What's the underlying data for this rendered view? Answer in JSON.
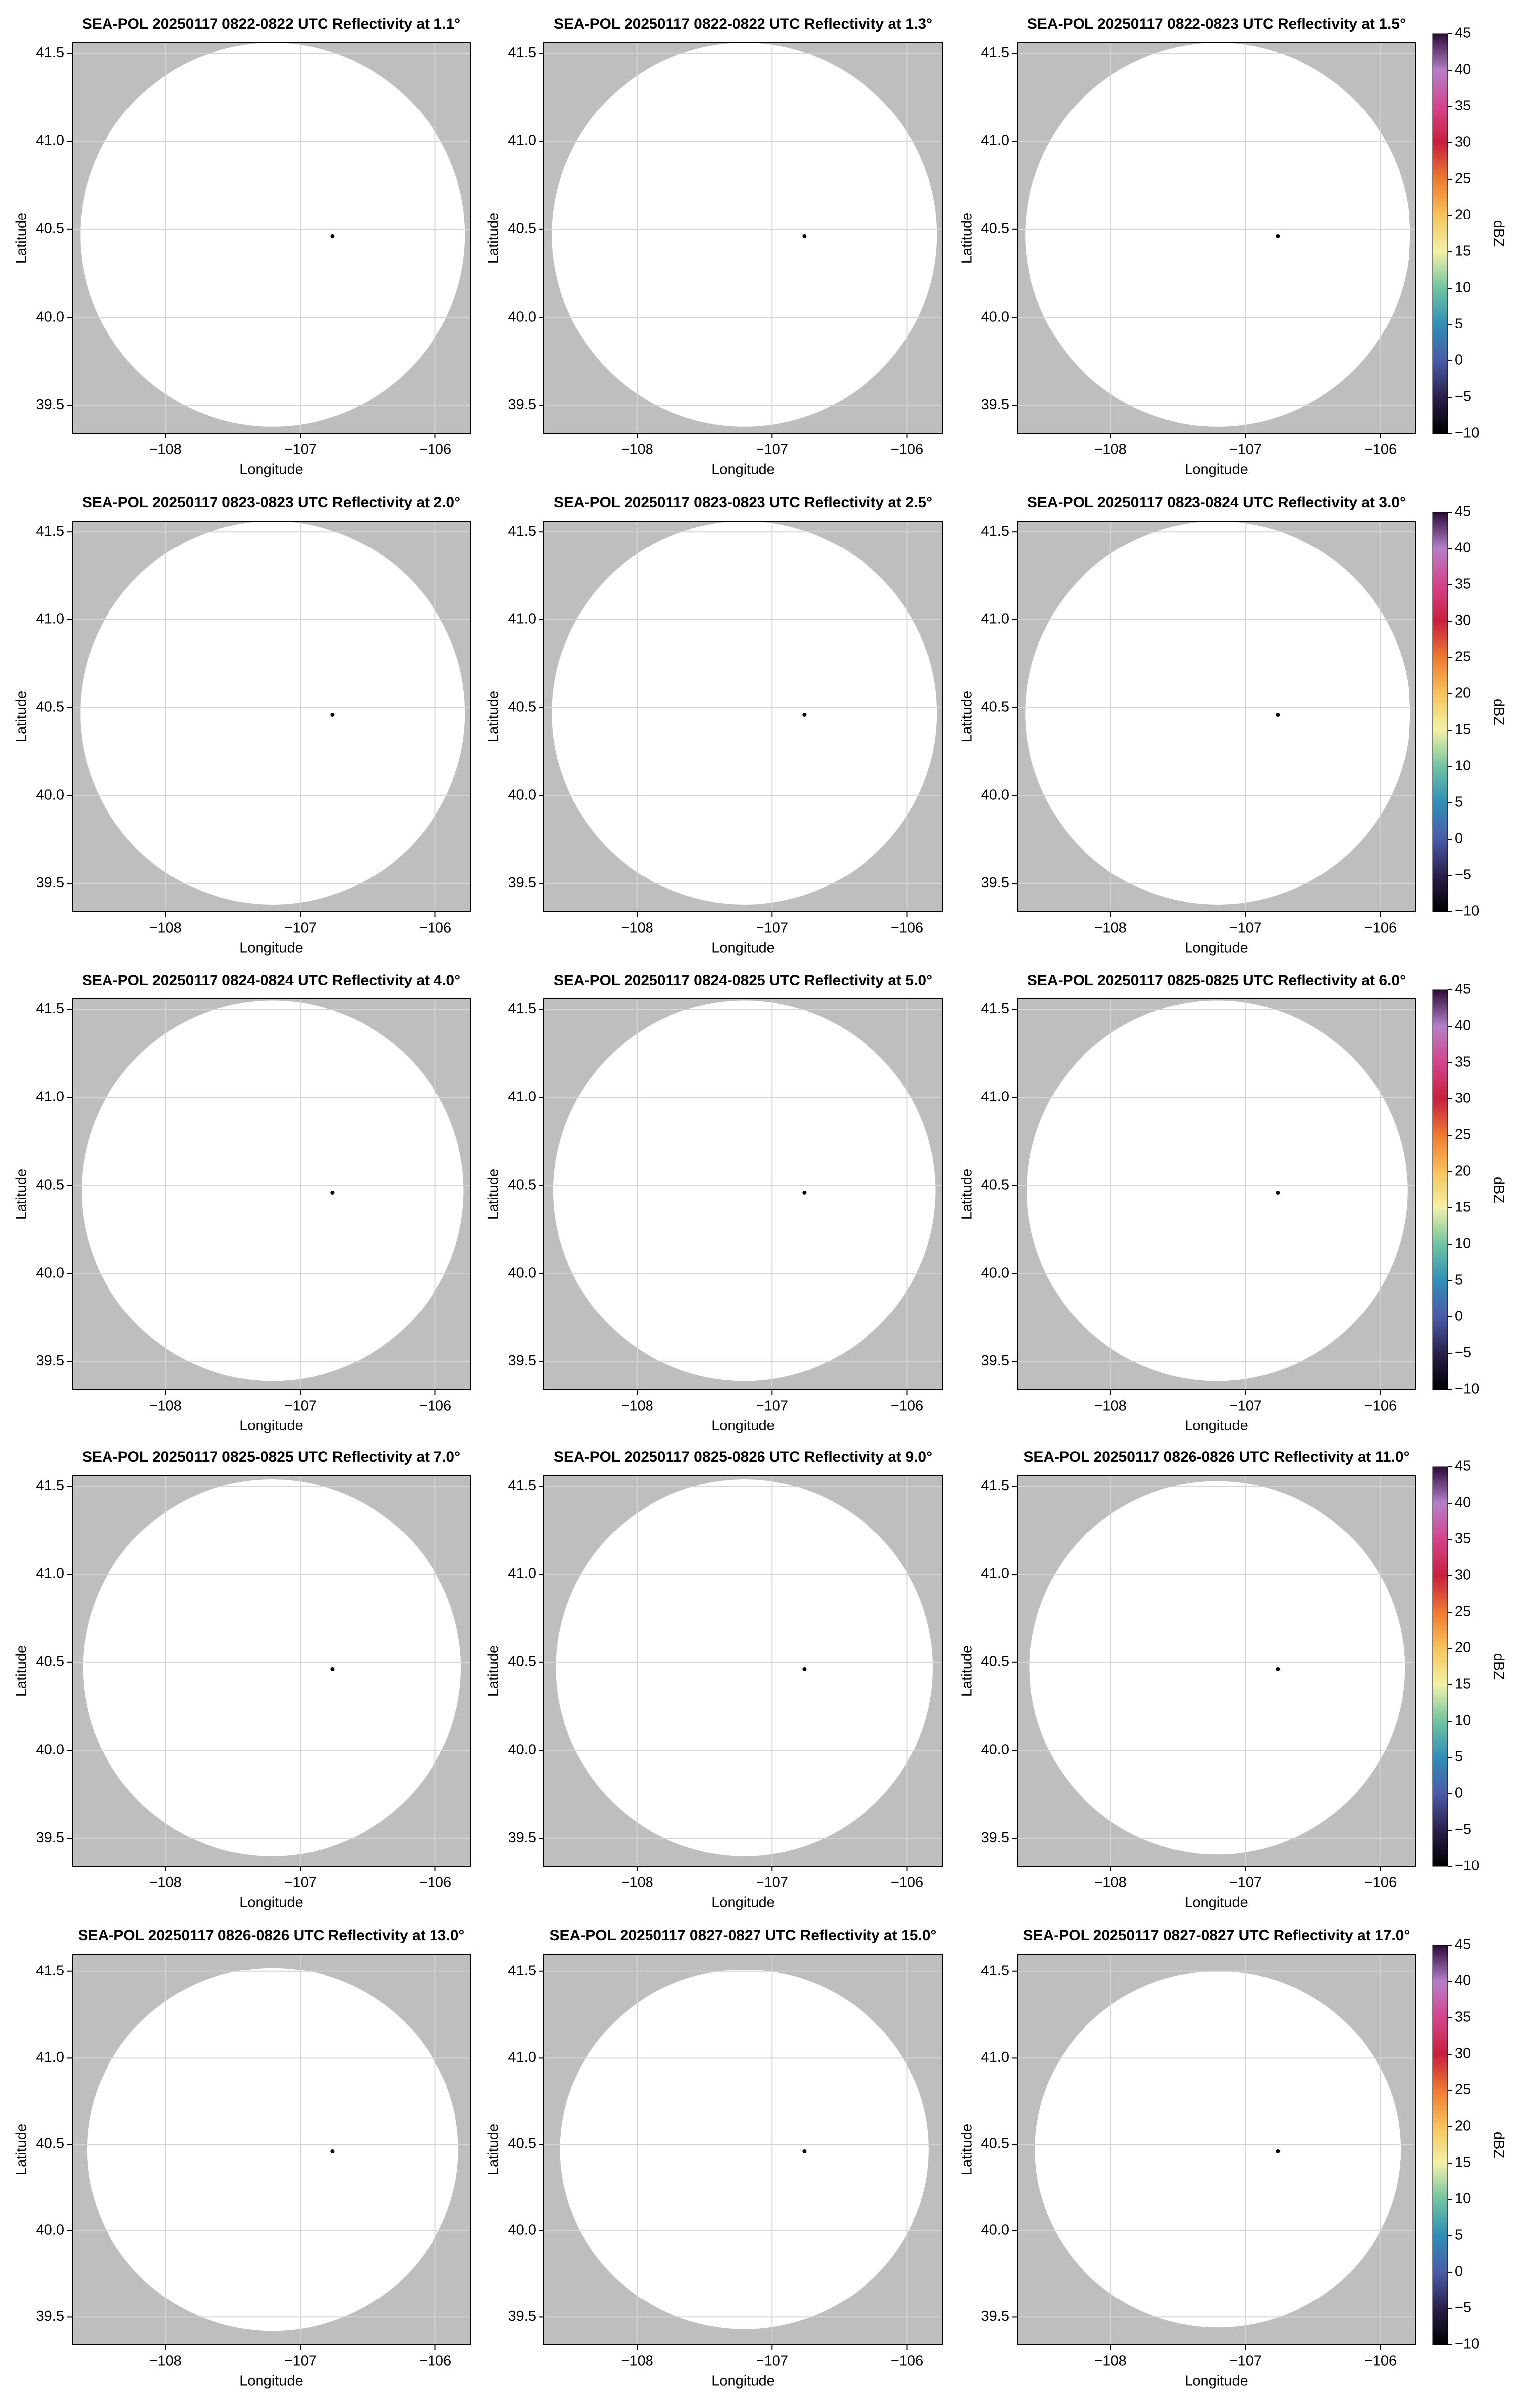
{
  "chart_data": [
    {
      "type": "map",
      "title": "SEA-POL 20250117 0822-0822 UTC Reflectivity at 1.1°",
      "xlabel": "Longitude",
      "ylabel": "Latitude",
      "xlim": [
        -108.69,
        -105.74
      ],
      "ylim": [
        39.34,
        41.56
      ],
      "xticks": [
        {
          "value": -108,
          "label": "−108"
        },
        {
          "value": -107,
          "label": "−107"
        },
        {
          "value": -106,
          "label": "−106"
        }
      ],
      "yticks": [
        39.5,
        {
          "value": 40,
          "label": "40.0"
        },
        40.5,
        {
          "value": 41,
          "label": "41.0"
        },
        41.5
      ],
      "grid": true,
      "background": "#bebebe",
      "coverage": {
        "lon": [
          -108.63,
          -105.78
        ],
        "lat": [
          39.38,
          41.56
        ],
        "color": "#ffffff"
      },
      "radar": {
        "lon": -106.76,
        "lat": 40.46,
        "color": "#000000"
      }
    },
    {
      "type": "map",
      "title": "SEA-POL 20250117 0822-0822 UTC Reflectivity at 1.3°",
      "xlabel": "Longitude",
      "ylabel": "Latitude",
      "xlim": [
        -108.69,
        -105.74
      ],
      "ylim": [
        39.34,
        41.56
      ],
      "xticks": [
        {
          "value": -108,
          "label": "−108"
        },
        {
          "value": -107,
          "label": "−107"
        },
        {
          "value": -106,
          "label": "−106"
        }
      ],
      "yticks": [
        39.5,
        {
          "value": 40,
          "label": "40.0"
        },
        40.5,
        {
          "value": 41,
          "label": "41.0"
        },
        41.5
      ],
      "grid": true,
      "background": "#bebebe",
      "coverage": {
        "lon": [
          -108.63,
          -105.78
        ],
        "lat": [
          39.38,
          41.56
        ],
        "color": "#ffffff"
      },
      "radar": {
        "lon": -106.76,
        "lat": 40.46,
        "color": "#000000"
      }
    },
    {
      "type": "map",
      "title": "SEA-POL 20250117 0822-0823 UTC Reflectivity at 1.5°",
      "xlabel": "Longitude",
      "ylabel": "Latitude",
      "xlim": [
        -108.69,
        -105.74
      ],
      "ylim": [
        39.34,
        41.56
      ],
      "xticks": [
        {
          "value": -108,
          "label": "−108"
        },
        {
          "value": -107,
          "label": "−107"
        },
        {
          "value": -106,
          "label": "−106"
        }
      ],
      "yticks": [
        39.5,
        {
          "value": 40,
          "label": "40.0"
        },
        40.5,
        {
          "value": 41,
          "label": "41.0"
        },
        41.5
      ],
      "grid": true,
      "background": "#bebebe",
      "coverage": {
        "lon": [
          -108.63,
          -105.78
        ],
        "lat": [
          39.38,
          41.56
        ],
        "color": "#ffffff"
      },
      "radar": {
        "lon": -106.76,
        "lat": 40.46,
        "color": "#000000"
      },
      "colorbar": {
        "label": "dBZ",
        "lim": [
          -10,
          45
        ],
        "ticks": [
          {
            "value": -10,
            "label": "−10"
          },
          {
            "value": -5,
            "label": "−5"
          },
          0,
          5,
          10,
          15,
          20,
          25,
          30,
          35,
          40,
          45
        ],
        "colors": [
          "#000000",
          "#2a1f4a",
          "#4a5ba8",
          "#2f8fb8",
          "#6ec4a0",
          "#f2f2a8",
          "#f6c45a",
          "#ee7a32",
          "#c8203a",
          "#d4448c",
          "#b57fc8",
          "#2d0a3a"
        ]
      }
    },
    {
      "type": "map",
      "title": "SEA-POL 20250117 0823-0823 UTC Reflectivity at 2.0°",
      "xlabel": "Longitude",
      "ylabel": "Latitude",
      "xlim": [
        -108.69,
        -105.74
      ],
      "ylim": [
        39.34,
        41.56
      ],
      "xticks": [
        {
          "value": -108,
          "label": "−108"
        },
        {
          "value": -107,
          "label": "−107"
        },
        {
          "value": -106,
          "label": "−106"
        }
      ],
      "yticks": [
        39.5,
        {
          "value": 40,
          "label": "40.0"
        },
        40.5,
        {
          "value": 41,
          "label": "41.0"
        },
        41.5
      ],
      "grid": true,
      "background": "#bebebe",
      "coverage": {
        "lon": [
          -108.63,
          -105.78
        ],
        "lat": [
          39.38,
          41.56
        ],
        "color": "#ffffff"
      },
      "radar": {
        "lon": -106.76,
        "lat": 40.46,
        "color": "#000000"
      }
    },
    {
      "type": "map",
      "title": "SEA-POL 20250117 0823-0823 UTC Reflectivity at 2.5°",
      "xlabel": "Longitude",
      "ylabel": "Latitude",
      "xlim": [
        -108.69,
        -105.74
      ],
      "ylim": [
        39.34,
        41.56
      ],
      "xticks": [
        {
          "value": -108,
          "label": "−108"
        },
        {
          "value": -107,
          "label": "−107"
        },
        {
          "value": -106,
          "label": "−106"
        }
      ],
      "yticks": [
        39.5,
        {
          "value": 40,
          "label": "40.0"
        },
        40.5,
        {
          "value": 41,
          "label": "41.0"
        },
        41.5
      ],
      "grid": true,
      "background": "#bebebe",
      "coverage": {
        "lon": [
          -108.63,
          -105.78
        ],
        "lat": [
          39.38,
          41.56
        ],
        "color": "#ffffff"
      },
      "radar": {
        "lon": -106.76,
        "lat": 40.46,
        "color": "#000000"
      }
    },
    {
      "type": "map",
      "title": "SEA-POL 20250117 0823-0824 UTC Reflectivity at 3.0°",
      "xlabel": "Longitude",
      "ylabel": "Latitude",
      "xlim": [
        -108.69,
        -105.74
      ],
      "ylim": [
        39.34,
        41.56
      ],
      "xticks": [
        {
          "value": -108,
          "label": "−108"
        },
        {
          "value": -107,
          "label": "−107"
        },
        {
          "value": -106,
          "label": "−106"
        }
      ],
      "yticks": [
        39.5,
        {
          "value": 40,
          "label": "40.0"
        },
        40.5,
        {
          "value": 41,
          "label": "41.0"
        },
        41.5
      ],
      "grid": true,
      "background": "#bebebe",
      "coverage": {
        "lon": [
          -108.63,
          -105.78
        ],
        "lat": [
          39.38,
          41.56
        ],
        "color": "#ffffff"
      },
      "radar": {
        "lon": -106.76,
        "lat": 40.46,
        "color": "#000000"
      },
      "colorbar": {
        "label": "dBZ",
        "lim": [
          -10,
          45
        ],
        "ticks": [
          {
            "value": -10,
            "label": "−10"
          },
          {
            "value": -5,
            "label": "−5"
          },
          0,
          5,
          10,
          15,
          20,
          25,
          30,
          35,
          40,
          45
        ],
        "colors": [
          "#000000",
          "#2a1f4a",
          "#4a5ba8",
          "#2f8fb8",
          "#6ec4a0",
          "#f2f2a8",
          "#f6c45a",
          "#ee7a32",
          "#c8203a",
          "#d4448c",
          "#b57fc8",
          "#2d0a3a"
        ]
      }
    },
    {
      "type": "map",
      "title": "SEA-POL 20250117 0824-0824 UTC Reflectivity at 4.0°",
      "xlabel": "Longitude",
      "ylabel": "Latitude",
      "xlim": [
        -108.69,
        -105.74
      ],
      "ylim": [
        39.34,
        41.56
      ],
      "xticks": [
        {
          "value": -108,
          "label": "−108"
        },
        {
          "value": -107,
          "label": "−107"
        },
        {
          "value": -106,
          "label": "−106"
        }
      ],
      "yticks": [
        39.5,
        {
          "value": 40,
          "label": "40.0"
        },
        40.5,
        {
          "value": 41,
          "label": "41.0"
        },
        41.5
      ],
      "grid": true,
      "background": "#bebebe",
      "coverage": {
        "lon": [
          -108.62,
          -105.79
        ],
        "lat": [
          39.39,
          41.55
        ],
        "color": "#ffffff"
      },
      "radar": {
        "lon": -106.76,
        "lat": 40.46,
        "color": "#000000"
      }
    },
    {
      "type": "map",
      "title": "SEA-POL 20250117 0824-0825 UTC Reflectivity at 5.0°",
      "xlabel": "Longitude",
      "ylabel": "Latitude",
      "xlim": [
        -108.69,
        -105.74
      ],
      "ylim": [
        39.34,
        41.56
      ],
      "xticks": [
        {
          "value": -108,
          "label": "−108"
        },
        {
          "value": -107,
          "label": "−107"
        },
        {
          "value": -106,
          "label": "−106"
        }
      ],
      "yticks": [
        39.5,
        {
          "value": 40,
          "label": "40.0"
        },
        40.5,
        {
          "value": 41,
          "label": "41.0"
        },
        41.5
      ],
      "grid": true,
      "background": "#bebebe",
      "coverage": {
        "lon": [
          -108.62,
          -105.79
        ],
        "lat": [
          39.39,
          41.55
        ],
        "color": "#ffffff"
      },
      "radar": {
        "lon": -106.76,
        "lat": 40.46,
        "color": "#000000"
      }
    },
    {
      "type": "map",
      "title": "SEA-POL 20250117 0825-0825 UTC Reflectivity at 6.0°",
      "xlabel": "Longitude",
      "ylabel": "Latitude",
      "xlim": [
        -108.69,
        -105.74
      ],
      "ylim": [
        39.34,
        41.56
      ],
      "xticks": [
        {
          "value": -108,
          "label": "−108"
        },
        {
          "value": -107,
          "label": "−107"
        },
        {
          "value": -106,
          "label": "−106"
        }
      ],
      "yticks": [
        39.5,
        {
          "value": 40,
          "label": "40.0"
        },
        40.5,
        {
          "value": 41,
          "label": "41.0"
        },
        41.5
      ],
      "grid": true,
      "background": "#bebebe",
      "coverage": {
        "lon": [
          -108.62,
          -105.8
        ],
        "lat": [
          39.39,
          41.55
        ],
        "color": "#ffffff"
      },
      "radar": {
        "lon": -106.76,
        "lat": 40.46,
        "color": "#000000"
      },
      "colorbar": {
        "label": "dBZ",
        "lim": [
          -10,
          45
        ],
        "ticks": [
          {
            "value": -10,
            "label": "−10"
          },
          {
            "value": -5,
            "label": "−5"
          },
          0,
          5,
          10,
          15,
          20,
          25,
          30,
          35,
          40,
          45
        ],
        "colors": [
          "#000000",
          "#2a1f4a",
          "#4a5ba8",
          "#2f8fb8",
          "#6ec4a0",
          "#f2f2a8",
          "#f6c45a",
          "#ee7a32",
          "#c8203a",
          "#d4448c",
          "#b57fc8",
          "#2d0a3a"
        ]
      }
    },
    {
      "type": "map",
      "title": "SEA-POL 20250117 0825-0825 UTC Reflectivity at 7.0°",
      "xlabel": "Longitude",
      "ylabel": "Latitude",
      "xlim": [
        -108.69,
        -105.74
      ],
      "ylim": [
        39.34,
        41.56
      ],
      "xticks": [
        {
          "value": -108,
          "label": "−108"
        },
        {
          "value": -107,
          "label": "−107"
        },
        {
          "value": -106,
          "label": "−106"
        }
      ],
      "yticks": [
        39.5,
        {
          "value": 40,
          "label": "40.0"
        },
        40.5,
        {
          "value": 41,
          "label": "41.0"
        },
        41.5
      ],
      "grid": true,
      "background": "#bebebe",
      "coverage": {
        "lon": [
          -108.61,
          -105.81
        ],
        "lat": [
          39.4,
          41.54
        ],
        "color": "#ffffff"
      },
      "radar": {
        "lon": -106.76,
        "lat": 40.46,
        "color": "#000000"
      }
    },
    {
      "type": "map",
      "title": "SEA-POL 20250117 0825-0826 UTC Reflectivity at 9.0°",
      "xlabel": "Longitude",
      "ylabel": "Latitude",
      "xlim": [
        -108.69,
        -105.74
      ],
      "ylim": [
        39.34,
        41.56
      ],
      "xticks": [
        {
          "value": -108,
          "label": "−108"
        },
        {
          "value": -107,
          "label": "−107"
        },
        {
          "value": -106,
          "label": "−106"
        }
      ],
      "yticks": [
        39.5,
        {
          "value": 40,
          "label": "40.0"
        },
        40.5,
        {
          "value": 41,
          "label": "41.0"
        },
        41.5
      ],
      "grid": true,
      "background": "#bebebe",
      "coverage": {
        "lon": [
          -108.6,
          -105.81
        ],
        "lat": [
          39.4,
          41.54
        ],
        "color": "#ffffff"
      },
      "radar": {
        "lon": -106.76,
        "lat": 40.46,
        "color": "#000000"
      }
    },
    {
      "type": "map",
      "title": "SEA-POL 20250117 0826-0826 UTC Reflectivity at 11.0°",
      "xlabel": "Longitude",
      "ylabel": "Latitude",
      "xlim": [
        -108.69,
        -105.74
      ],
      "ylim": [
        39.34,
        41.56
      ],
      "xticks": [
        {
          "value": -108,
          "label": "−108"
        },
        {
          "value": -107,
          "label": "−107"
        },
        {
          "value": -106,
          "label": "−106"
        }
      ],
      "yticks": [
        39.5,
        {
          "value": 40,
          "label": "40.0"
        },
        40.5,
        {
          "value": 41,
          "label": "41.0"
        },
        41.5
      ],
      "grid": true,
      "background": "#bebebe",
      "coverage": {
        "lon": [
          -108.6,
          -105.82
        ],
        "lat": [
          39.41,
          41.53
        ],
        "color": "#ffffff"
      },
      "radar": {
        "lon": -106.76,
        "lat": 40.46,
        "color": "#000000"
      },
      "colorbar": {
        "label": "dBZ",
        "lim": [
          -10,
          45
        ],
        "ticks": [
          {
            "value": -10,
            "label": "−10"
          },
          {
            "value": -5,
            "label": "−5"
          },
          0,
          5,
          10,
          15,
          20,
          25,
          30,
          35,
          40,
          45
        ],
        "colors": [
          "#000000",
          "#2a1f4a",
          "#4a5ba8",
          "#2f8fb8",
          "#6ec4a0",
          "#f2f2a8",
          "#f6c45a",
          "#ee7a32",
          "#c8203a",
          "#d4448c",
          "#b57fc8",
          "#2d0a3a"
        ]
      }
    },
    {
      "type": "map",
      "title": "SEA-POL 20250117 0826-0826 UTC Reflectivity at 13.0°",
      "xlabel": "Longitude",
      "ylabel": "Latitude",
      "xlim": [
        -108.69,
        -105.74
      ],
      "ylim": [
        39.34,
        41.6
      ],
      "xticks": [
        {
          "value": -108,
          "label": "−108"
        },
        {
          "value": -107,
          "label": "−107"
        },
        {
          "value": -106,
          "label": "−106"
        }
      ],
      "yticks": [
        39.5,
        {
          "value": 40,
          "label": "40.0"
        },
        40.5,
        {
          "value": 41,
          "label": "41.0"
        },
        41.5
      ],
      "grid": true,
      "background": "#bebebe",
      "coverage": {
        "lon": [
          -108.58,
          -105.83
        ],
        "lat": [
          39.42,
          41.52
        ],
        "color": "#ffffff"
      },
      "radar": {
        "lon": -106.76,
        "lat": 40.46,
        "color": "#000000"
      }
    },
    {
      "type": "map",
      "title": "SEA-POL 20250117 0827-0827 UTC Reflectivity at 15.0°",
      "xlabel": "Longitude",
      "ylabel": "Latitude",
      "xlim": [
        -108.69,
        -105.74
      ],
      "ylim": [
        39.34,
        41.6
      ],
      "xticks": [
        {
          "value": -108,
          "label": "−108"
        },
        {
          "value": -107,
          "label": "−107"
        },
        {
          "value": -106,
          "label": "−106"
        }
      ],
      "yticks": [
        39.5,
        {
          "value": 40,
          "label": "40.0"
        },
        40.5,
        {
          "value": 41,
          "label": "41.0"
        },
        41.5
      ],
      "grid": true,
      "background": "#bebebe",
      "coverage": {
        "lon": [
          -108.57,
          -105.84
        ],
        "lat": [
          39.43,
          41.51
        ],
        "color": "#ffffff"
      },
      "radar": {
        "lon": -106.76,
        "lat": 40.46,
        "color": "#000000"
      }
    },
    {
      "type": "map",
      "title": "SEA-POL 20250117 0827-0827 UTC Reflectivity at 17.0°",
      "xlabel": "Longitude",
      "ylabel": "Latitude",
      "xlim": [
        -108.69,
        -105.74
      ],
      "ylim": [
        39.34,
        41.6
      ],
      "xticks": [
        {
          "value": -108,
          "label": "−108"
        },
        {
          "value": -107,
          "label": "−107"
        },
        {
          "value": -106,
          "label": "−106"
        }
      ],
      "yticks": [
        39.5,
        {
          "value": 40,
          "label": "40.0"
        },
        40.5,
        {
          "value": 41,
          "label": "41.0"
        },
        41.5
      ],
      "grid": true,
      "background": "#bebebe",
      "coverage": {
        "lon": [
          -108.56,
          -105.85
        ],
        "lat": [
          39.44,
          41.5
        ],
        "color": "#ffffff"
      },
      "radar": {
        "lon": -106.76,
        "lat": 40.46,
        "color": "#000000"
      },
      "colorbar": {
        "label": "dBZ",
        "lim": [
          -10,
          45
        ],
        "ticks": [
          {
            "value": -10,
            "label": "−10"
          },
          {
            "value": -5,
            "label": "−5"
          },
          0,
          5,
          10,
          15,
          20,
          25,
          30,
          35,
          40,
          45
        ],
        "colors": [
          "#000000",
          "#2a1f4a",
          "#4a5ba8",
          "#2f8fb8",
          "#6ec4a0",
          "#f2f2a8",
          "#f6c45a",
          "#ee7a32",
          "#c8203a",
          "#d4448c",
          "#b57fc8",
          "#2d0a3a"
        ]
      }
    }
  ]
}
